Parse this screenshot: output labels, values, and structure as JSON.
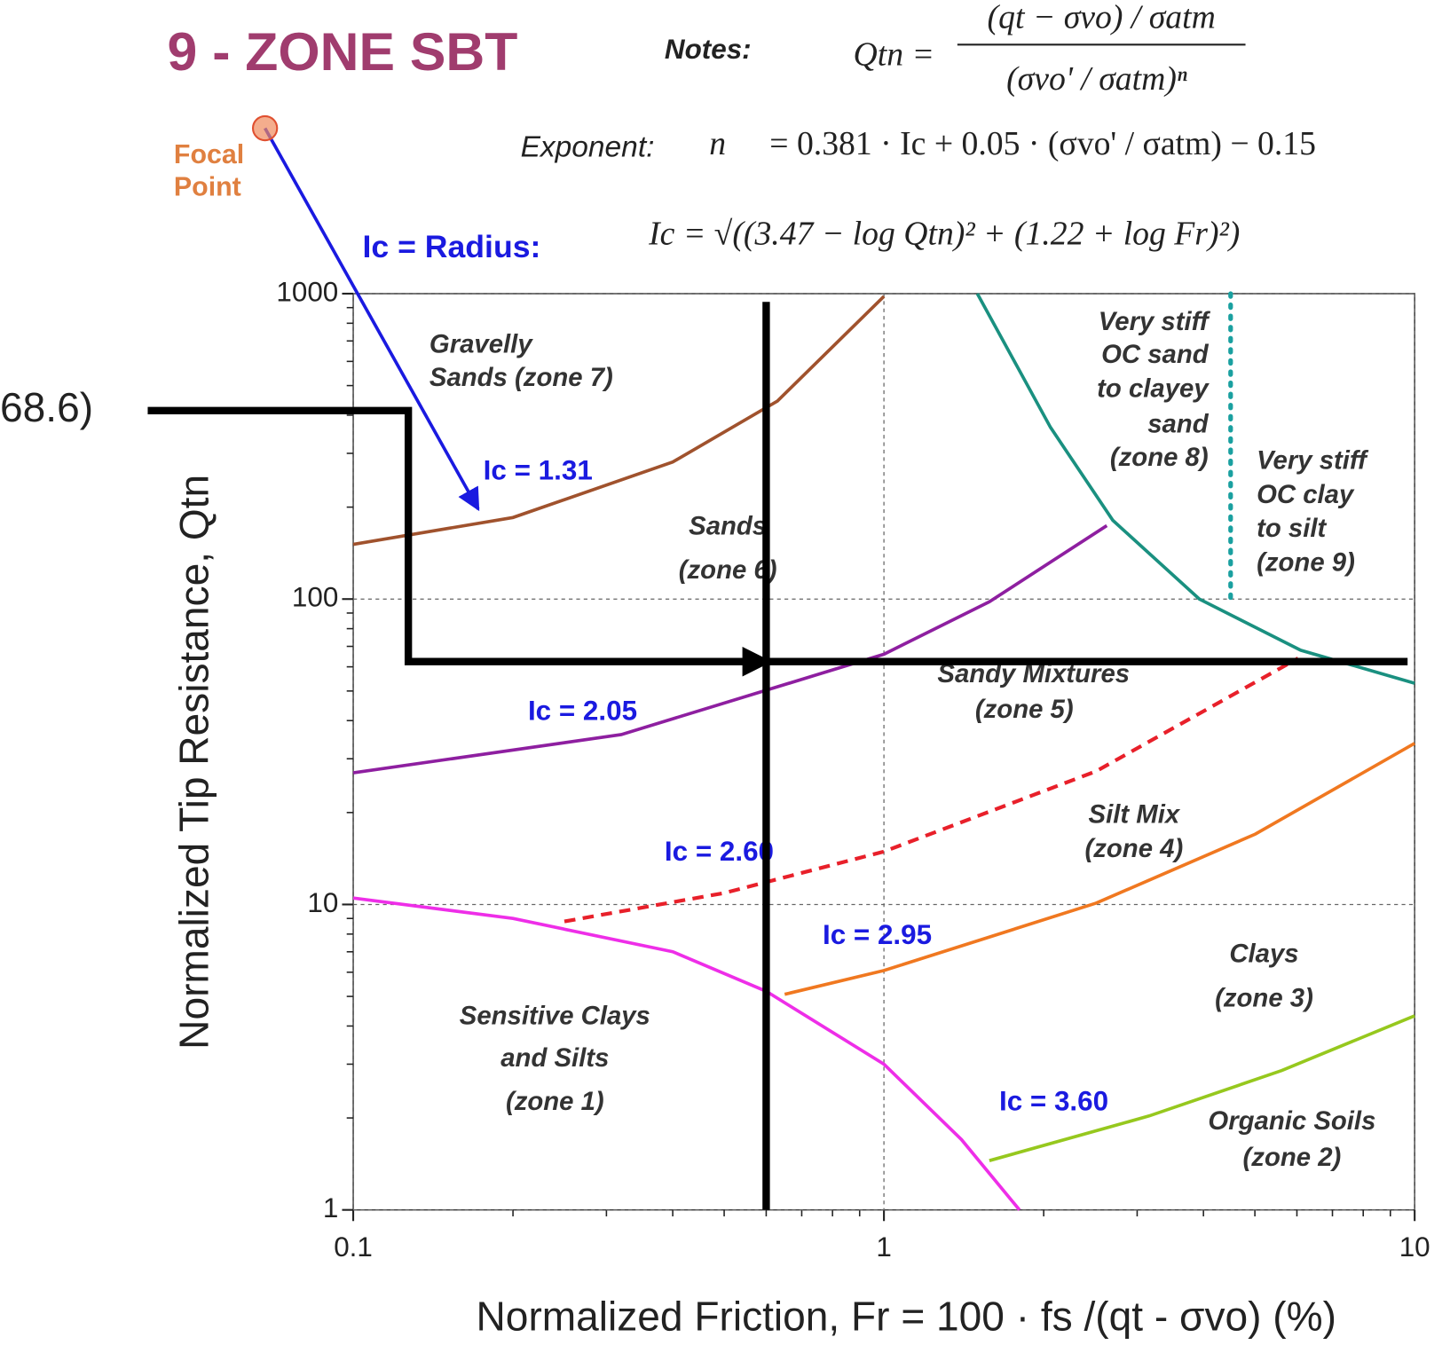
{
  "chart_data": {
    "type": "line",
    "title": "9 - ZONE SBT",
    "notes_label": "Notes:",
    "formula_qtn": {
      "lhs": "Qtn =",
      "numerator": "(qt − σvo) / σatm",
      "denominator": "(σvo' / σatm)ⁿ"
    },
    "formula_exponent": {
      "label": "Exponent:",
      "lhs": "n",
      "rhs": "= 0.381 · Ic + 0.05 · (σvo' / σatm) − 0.15"
    },
    "formula_radius": {
      "label": "Ic = Radius:",
      "rhs": "Ic = √((3.47 − log Qtn)² + (1.22 + log Fr)²)"
    },
    "focal_point": {
      "label": [
        "Focal",
        "Point"
      ],
      "x": 0.0682,
      "y": 3480,
      "color": "#f08a5d"
    },
    "side_label": "68.6)",
    "x_label": "Normalized Friction, Fr = 100 · fs /(qt - σvo)  (%)",
    "y_label": "Normalized Tip Resistance, Qtn",
    "xlog": true,
    "ylog": true,
    "xlim": [
      0.1,
      10
    ],
    "ylim": [
      1,
      1000
    ],
    "xticks": [
      0.1,
      1,
      10
    ],
    "yticks": [
      1,
      10,
      100,
      1000
    ],
    "grid": true,
    "series": [
      {
        "label": "Ic = 1.31",
        "color": "#a0522d",
        "style": "solid",
        "x": [
          0.1,
          0.2,
          0.4,
          0.63,
          1.0
        ],
        "values": [
          151,
          185,
          281,
          445,
          980
        ]
      },
      {
        "label": "Ic = 2.05",
        "color": "#8e1fa0",
        "style": "solid",
        "x": [
          0.1,
          0.32,
          1,
          1.58,
          2.63
        ],
        "values": [
          27,
          36,
          66,
          98,
          174
        ]
      },
      {
        "label": "Ic = 2.60",
        "color": "#e8202a",
        "style": "dashed",
        "x": [
          0.25,
          0.5,
          1,
          2.51,
          6.03
        ],
        "values": [
          8.8,
          10.9,
          14.9,
          27.3,
          64
        ]
      },
      {
        "label": "Ic = 2.95",
        "color": "#f07820",
        "style": "solid",
        "x": [
          0.65,
          1,
          2.51,
          5.01,
          10
        ],
        "values": [
          5.08,
          6.08,
          10.1,
          17,
          33.7
        ]
      },
      {
        "label": "Ic = 3.60",
        "color": "#96c81e",
        "style": "solid",
        "x": [
          1.58,
          3.16,
          5.62,
          10
        ],
        "values": [
          1.45,
          2.03,
          2.86,
          4.32
        ]
      },
      {
        "color": "#ee2ee8",
        "style": "solid",
        "x": [
          0.1,
          0.2,
          0.4,
          0.6,
          1,
          1.4,
          1.8
        ],
        "values": [
          10.5,
          9,
          7,
          5.2,
          3,
          1.7,
          1
        ]
      },
      {
        "color": "#1a9080",
        "style": "solid",
        "x": [
          1.5,
          2.06,
          2.7,
          3.93,
          6.1,
          10
        ],
        "values": [
          1000,
          365,
          181,
          100,
          68,
          53
        ]
      },
      {
        "color": "#1aa0a0",
        "style": "dotted",
        "x": [
          4.5,
          4.5
        ],
        "values": [
          1000,
          95
        ]
      },
      {
        "color": "#000000",
        "style": "thick",
        "arrow": true,
        "x": [
          0.041,
          0.127,
          0.127,
          0.6
        ],
        "values": [
          414,
          414,
          62.4,
          62.4
        ]
      },
      {
        "color": "#000000",
        "style": "thick",
        "x": [
          0.6,
          9.7
        ],
        "values": [
          62.4,
          62.4
        ]
      },
      {
        "color": "#000000",
        "style": "thick",
        "x": [
          0.6,
          0.6
        ],
        "values": [
          940,
          1
        ]
      },
      {
        "color": "#1a1ae0",
        "style": "solid",
        "arrow": true,
        "x": [
          0.0682,
          0.172
        ],
        "values": [
          3480,
          197
        ]
      }
    ],
    "annotations": [
      [
        "Gravelly",
        "Sands  (zone 7)"
      ],
      [
        "Sands",
        "(zone 6)"
      ],
      [
        "Very stiff",
        "OC sand",
        "to clayey",
        "sand",
        "(zone 8)"
      ],
      [
        "Very stiff",
        "OC clay",
        "to silt",
        "(zone 9)"
      ],
      [
        "Sandy Mixtures",
        "(zone 5)"
      ],
      [
        "Silt Mix",
        "(zone 4)"
      ],
      [
        "Clays",
        "(zone 3)"
      ],
      [
        "Sensitive Clays",
        "and Silts",
        "(zone 1)"
      ],
      [
        "Organic Soils",
        "(zone 2)"
      ]
    ]
  }
}
